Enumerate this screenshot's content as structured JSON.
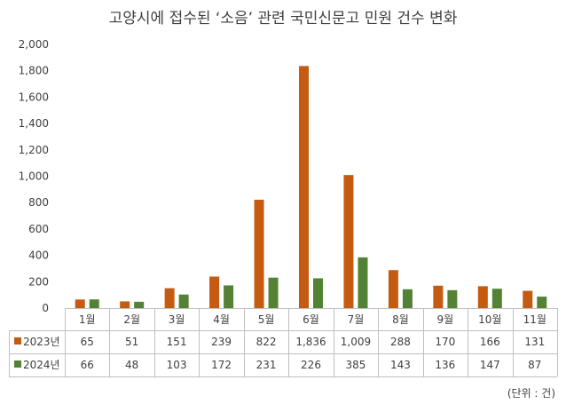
{
  "chart_data": {
    "type": "bar",
    "title": "고양시에 접수된 ‘소음’ 관련 국민신문고 민원 건수 변화",
    "categories": [
      "1월",
      "2월",
      "3월",
      "4월",
      "5월",
      "6월",
      "7월",
      "8월",
      "9월",
      "10월",
      "11월"
    ],
    "series": [
      {
        "name": "2023년",
        "color": "#C55A11",
        "values": [
          65,
          51,
          151,
          239,
          822,
          1836,
          1009,
          288,
          170,
          166,
          131
        ],
        "labels": [
          "65",
          "51",
          "151",
          "239",
          "822",
          "1,836",
          "1,009",
          "288",
          "170",
          "166",
          "131"
        ]
      },
      {
        "name": "2024년",
        "color": "#548235",
        "values": [
          66,
          48,
          103,
          172,
          231,
          226,
          385,
          143,
          136,
          147,
          87
        ],
        "labels": [
          "66",
          "48",
          "103",
          "172",
          "231",
          "226",
          "385",
          "143",
          "136",
          "147",
          "87"
        ]
      }
    ],
    "ylim": [
      0,
      2000
    ],
    "yticks": [
      "0",
      "200",
      "400",
      "600",
      "800",
      "1,000",
      "1,200",
      "1,400",
      "1,600",
      "1,800",
      "2,000"
    ],
    "grid": false,
    "legend": "data-table",
    "unit_note": "(단위 : 건)"
  }
}
